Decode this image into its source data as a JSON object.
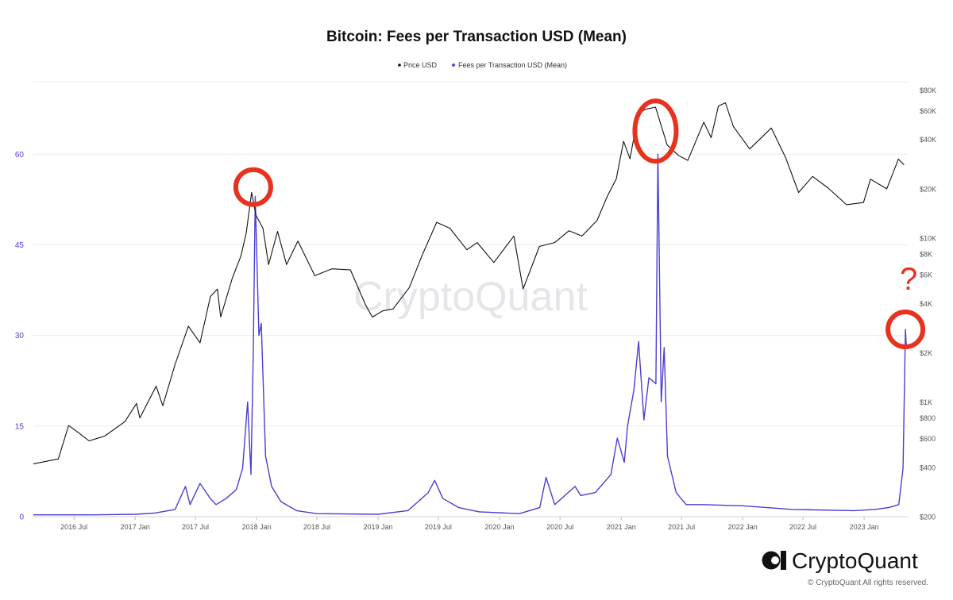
{
  "chart_data": {
    "type": "line",
    "title": "Bitcoin: Fees per Transaction USD (Mean)",
    "legend_placement": "top-center",
    "grid": true,
    "colors": {
      "price": "#111111",
      "fees": "#4a3fd0",
      "annotation": "#e8321e"
    },
    "x_ticks": [
      "2016 Jul",
      "2017 Jan",
      "2017 Jul",
      "2018 Jan",
      "2018 Jul",
      "2019 Jan",
      "2019 Jul",
      "2020 Jan",
      "2020 Jul",
      "2021 Jan",
      "2021 Jul",
      "2022 Jan",
      "2022 Jul",
      "2023 Jan"
    ],
    "y_left": {
      "ticks": [
        "0",
        "15",
        "30",
        "45",
        "60"
      ],
      "range": [
        0,
        72
      ]
    },
    "y_right": {
      "scale": "log",
      "ticks": [
        "$200",
        "$400",
        "$600",
        "$800",
        "$1K",
        "$2K",
        "$4K",
        "$6K",
        "$8K",
        "$10K",
        "$20K",
        "$40K",
        "$60K",
        "$80K"
      ],
      "range": [
        200,
        90000
      ]
    },
    "series": [
      {
        "name": "Price USD",
        "axis": "right",
        "x": [
          "2016-03-01",
          "2016-05-15",
          "2016-06-15",
          "2016-07-15",
          "2016-08-15",
          "2016-10-01",
          "2016-12-01",
          "2017-01-05",
          "2017-01-15",
          "2017-03-05",
          "2017-03-25",
          "2017-05-01",
          "2017-06-10",
          "2017-07-15",
          "2017-08-15",
          "2017-09-05",
          "2017-09-15",
          "2017-10-20",
          "2017-11-15",
          "2017-12-01",
          "2017-12-17",
          "2017-12-30",
          "2018-01-20",
          "2018-02-06",
          "2018-03-05",
          "2018-04-01",
          "2018-05-05",
          "2018-06-25",
          "2018-08-15",
          "2018-10-10",
          "2018-11-25",
          "2018-12-15",
          "2019-01-15",
          "2019-02-15",
          "2019-04-05",
          "2019-05-15",
          "2019-06-26",
          "2019-08-05",
          "2019-09-25",
          "2019-10-26",
          "2019-12-15",
          "2020-02-13",
          "2020-03-12",
          "2020-04-30",
          "2020-06-15",
          "2020-07-28",
          "2020-09-05",
          "2020-10-20",
          "2020-11-20",
          "2020-12-17",
          "2021-01-08",
          "2021-01-27",
          "2021-02-21",
          "2021-03-13",
          "2021-04-14",
          "2021-05-19",
          "2021-06-22",
          "2021-07-20",
          "2021-09-06",
          "2021-09-28",
          "2021-10-20",
          "2021-11-10",
          "2021-12-04",
          "2022-01-22",
          "2022-03-28",
          "2022-05-10",
          "2022-06-18",
          "2022-07-30",
          "2022-09-15",
          "2022-11-09",
          "2022-12-30",
          "2023-01-20",
          "2023-03-10",
          "2023-04-14",
          "2023-05-01"
        ],
        "y": [
          420,
          450,
          720,
          650,
          580,
          620,
          760,
          980,
          800,
          1250,
          950,
          1700,
          2900,
          2300,
          4400,
          4900,
          3300,
          5700,
          7800,
          10800,
          19000,
          13800,
          11500,
          6900,
          11000,
          6900,
          9600,
          5900,
          6500,
          6400,
          3900,
          3300,
          3600,
          3700,
          5000,
          8000,
          12500,
          11500,
          8500,
          9400,
          7100,
          10300,
          4900,
          8900,
          9400,
          11100,
          10300,
          12800,
          18000,
          23000,
          39000,
          30500,
          57000,
          61000,
          63000,
          37000,
          32000,
          29800,
          51000,
          41000,
          64000,
          67000,
          48000,
          35000,
          47000,
          31000,
          19000,
          23800,
          20200,
          16000,
          16500,
          22900,
          20000,
          30400,
          28000
        ]
      },
      {
        "name": "Fees per Transaction USD (Mean)",
        "axis": "left",
        "x": [
          "2016-03-01",
          "2016-09-01",
          "2017-01-01",
          "2017-03-01",
          "2017-05-01",
          "2017-06-01",
          "2017-06-15",
          "2017-07-15",
          "2017-08-15",
          "2017-09-01",
          "2017-10-01",
          "2017-11-01",
          "2017-11-20",
          "2017-12-05",
          "2017-12-15",
          "2017-12-22",
          "2017-12-28",
          "2018-01-08",
          "2018-01-15",
          "2018-01-28",
          "2018-02-15",
          "2018-03-15",
          "2018-05-01",
          "2018-07-01",
          "2019-01-01",
          "2019-04-01",
          "2019-06-01",
          "2019-06-20",
          "2019-07-15",
          "2019-09-01",
          "2019-11-01",
          "2020-03-01",
          "2020-05-01",
          "2020-05-20",
          "2020-06-15",
          "2020-08-15",
          "2020-09-01",
          "2020-10-15",
          "2020-12-01",
          "2020-12-20",
          "2021-01-10",
          "2021-01-20",
          "2021-02-08",
          "2021-02-22",
          "2021-03-10",
          "2021-03-25",
          "2021-04-15",
          "2021-04-21",
          "2021-05-01",
          "2021-05-10",
          "2021-05-20",
          "2021-06-15",
          "2021-07-15",
          "2021-09-01",
          "2022-01-01",
          "2022-06-01",
          "2022-12-01",
          "2023-02-01",
          "2023-03-15",
          "2023-04-15",
          "2023-04-28",
          "2023-05-05",
          "2023-05-08"
        ],
        "y": [
          0.3,
          0.3,
          0.4,
          0.6,
          1.2,
          5.0,
          2.0,
          5.5,
          3.0,
          2.0,
          3.0,
          4.5,
          8.0,
          19.0,
          7.0,
          27.0,
          53.0,
          30.0,
          32.0,
          10.0,
          5.0,
          2.5,
          1.0,
          0.5,
          0.4,
          1.0,
          4.0,
          6.0,
          3.0,
          1.5,
          0.8,
          0.5,
          1.5,
          6.5,
          2.0,
          5.0,
          3.5,
          4.0,
          7.0,
          13.0,
          9.0,
          15.0,
          21.0,
          29.0,
          16.0,
          23.0,
          22.0,
          60.0,
          19.0,
          28.0,
          10.0,
          4.0,
          2.0,
          2.0,
          1.8,
          1.2,
          1.0,
          1.2,
          1.5,
          2.0,
          8.0,
          31.0,
          28.0
        ]
      }
    ],
    "annotations": [
      {
        "type": "circle",
        "x": "2017-12-22",
        "y_right": 20500
      },
      {
        "type": "circle",
        "x": "2021-04-14",
        "y_right": 45000
      },
      {
        "type": "circle",
        "x": "2023-05-05",
        "y_left": 31,
        "label": "?"
      }
    ]
  },
  "watermark": "CryptoQuant",
  "brand": {
    "name": "CryptoQuant",
    "copyright": "© CryptoQuant All rights reserved."
  }
}
